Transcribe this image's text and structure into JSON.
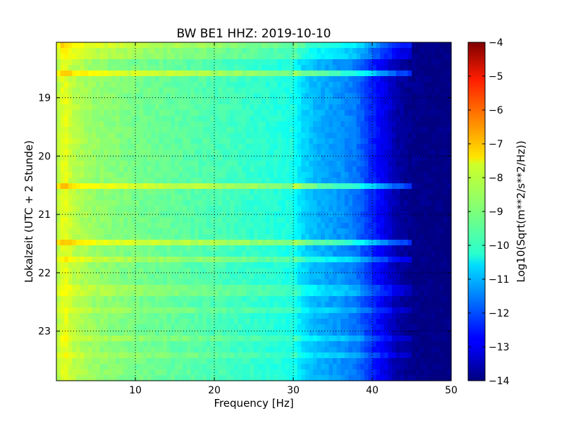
{
  "chart_data": {
    "type": "heatmap",
    "title": "BW BE1 HHZ: 2019-10-10",
    "xlabel": "Frequency [Hz]",
    "ylabel": "Lokalzeit (UTC + 2 Stunde)",
    "xlim": [
      0,
      50
    ],
    "ylim": [
      18.05,
      23.85
    ],
    "x_ticks": [
      10,
      20,
      30,
      40,
      50
    ],
    "x_tick_labels": [
      "10",
      "20",
      "30",
      "40",
      "50"
    ],
    "y_ticks": [
      19,
      20,
      21,
      22,
      23
    ],
    "y_tick_labels": [
      "19",
      "20",
      "21",
      "22",
      "23"
    ],
    "y_inverted": true,
    "grid": true,
    "colormap": "jet",
    "colorbar": {
      "label": "Log10(Sqrt(m**2/s**2/Hz))",
      "range": [
        -14,
        -4
      ],
      "ticks": [
        -4,
        -5,
        -6,
        -7,
        -8,
        -9,
        -10,
        -11,
        -12,
        -13,
        -14
      ],
      "tick_labels": [
        "−4",
        "−5",
        "−6",
        "−7",
        "−8",
        "−9",
        "−10",
        "−11",
        "−12",
        "−13",
        "−14"
      ]
    },
    "spectral_profile": {
      "frequency_hz": [
        0,
        1,
        2,
        5,
        10,
        20,
        28,
        30,
        31,
        33,
        36,
        38,
        40,
        42,
        43,
        45,
        50
      ],
      "log10_amplitude": [
        -8.6,
        -7.9,
        -8.4,
        -8.8,
        -9.1,
        -9.5,
        -9.9,
        -10.0,
        -10.6,
        -11.0,
        -11.3,
        -11.6,
        -12.4,
        -13.1,
        -13.6,
        -13.9,
        -14.0
      ]
    },
    "horizontal_bands": [
      {
        "time": 18.05,
        "log10_amplitude_boost": 1.4
      },
      {
        "time": 18.25,
        "log10_amplitude_boost": 0.8
      },
      {
        "time": 18.6,
        "log10_amplitude_boost": 1.8
      },
      {
        "time": 20.55,
        "log10_amplitude_boost": 1.9
      },
      {
        "time": 21.5,
        "log10_amplitude_boost": 1.8
      },
      {
        "time": 21.8,
        "log10_amplitude_boost": 1.0
      },
      {
        "time": 22.3,
        "log10_amplitude_boost": 0.6
      },
      {
        "time": 22.65,
        "log10_amplitude_boost": 0.5
      },
      {
        "time": 23.15,
        "log10_amplitude_boost": 0.6
      },
      {
        "time": 23.45,
        "log10_amplitude_boost": 0.5
      }
    ]
  }
}
